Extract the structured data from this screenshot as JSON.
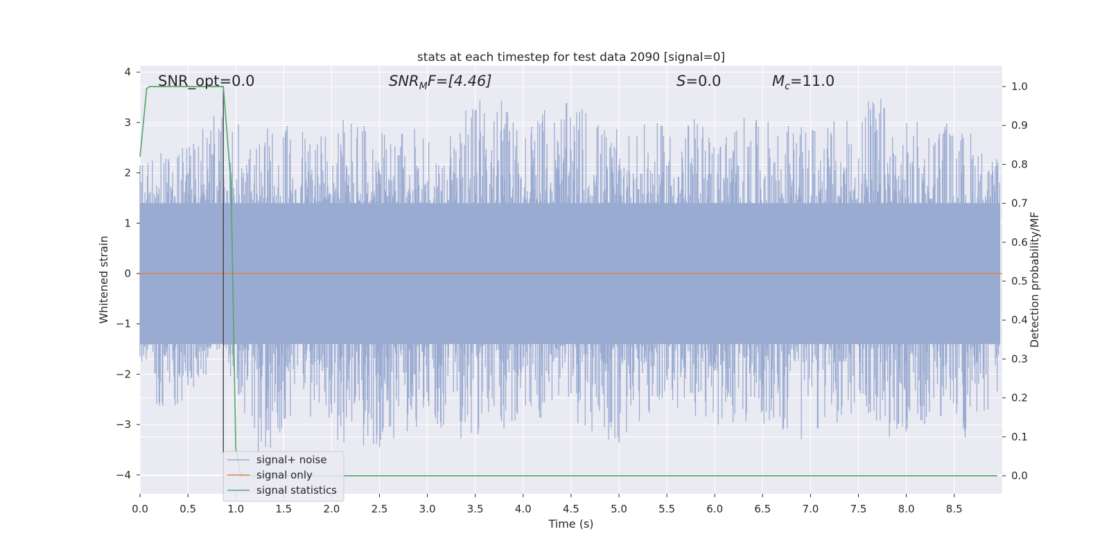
{
  "chart_data": {
    "type": "line",
    "title": "stats at each timestep for test data 2090 [signal=0]",
    "xlabel": "Time (s)",
    "ylabel": "Whitened strain",
    "y2label": "Detection probability/MF",
    "xlim": [
      0.0,
      9.0
    ],
    "ylim": [
      -4.38,
      4.1
    ],
    "y2lim": [
      -0.05,
      1.045
    ],
    "xticks": [
      "0.0",
      "0.5",
      "1.0",
      "1.5",
      "2.0",
      "2.5",
      "3.0",
      "3.5",
      "4.0",
      "4.5",
      "5.0",
      "5.5",
      "6.0",
      "6.5",
      "7.0",
      "7.5",
      "8.0",
      "8.5"
    ],
    "yticks": [
      "4",
      "3",
      "2",
      "1",
      "0",
      "−1",
      "−2",
      "−3",
      "−4"
    ],
    "y2ticks": [
      "1.0",
      "0.9",
      "0.8",
      "0.7",
      "0.6",
      "0.5",
      "0.4",
      "0.3",
      "0.2",
      "0.1",
      "0.0"
    ],
    "grid": true,
    "legend_position": "lower-left",
    "annotations": {
      "snr_opt": "SNR_opt=0.0",
      "snr_mf_main": "SNR",
      "snr_mf_sub": "M",
      "snr_mf_rest": "F=[4.46]",
      "s_main": "S",
      "s_rest": "=0.0",
      "mc_main": "M",
      "mc_sub": "c",
      "mc_rest": "=11.0"
    },
    "marker_line_x": 0.87,
    "series": [
      {
        "name": "signal+ noise",
        "color": "#9aabd1",
        "description": "whitened noise, envelope approx ±2 with peaks to about ±3.7",
        "envelope_peaks_x": [
          0.08,
          0.22,
          0.46,
          0.74,
          0.82,
          0.93,
          1.12,
          1.52,
          1.98,
          2.12,
          2.34,
          2.52,
          2.71,
          2.95,
          3.12,
          3.29,
          3.47,
          3.63,
          3.98,
          4.42,
          4.66,
          4.91,
          5.07,
          5.38,
          5.62,
          5.87,
          6.05,
          6.22,
          6.45,
          6.68,
          6.88,
          7.22,
          7.41,
          7.67,
          7.92,
          8.19,
          8.38,
          8.52,
          8.7,
          8.86
        ],
        "envelope_peaks_y": [
          2.2,
          2.45,
          2.55,
          3.15,
          3.3,
          2.95,
          3.0,
          2.95,
          3.0,
          3.25,
          3.1,
          2.8,
          2.8,
          3.1,
          2.5,
          2.9,
          3.45,
          3.65,
          3.2,
          3.4,
          3.4,
          2.85,
          2.9,
          3.0,
          3.0,
          3.15,
          2.75,
          3.2,
          3.05,
          3.15,
          2.9,
          3.1,
          3.05,
          3.7,
          3.05,
          3.05,
          3.2,
          2.85,
          2.95,
          2.3
        ],
        "envelope_troughs_x": [
          0.05,
          0.19,
          0.51,
          0.86,
          1.25,
          1.56,
          1.82,
          2.19,
          2.67,
          2.99,
          3.36,
          3.88,
          4.34,
          4.98,
          5.21,
          5.62,
          5.88,
          6.24,
          6.61,
          6.86,
          7.18,
          7.51,
          7.86,
          8.22,
          8.61,
          8.86
        ],
        "envelope_troughs_y": [
          -2.3,
          -2.9,
          -2.5,
          -1.6,
          -3.7,
          -3.1,
          -2.8,
          -3.6,
          -3.4,
          -2.9,
          -3.3,
          -3.2,
          -2.7,
          -3.6,
          -3.0,
          -2.7,
          -3.3,
          -3.0,
          -3.0,
          -3.45,
          -3.0,
          -3.0,
          -3.4,
          -3.0,
          -3.3,
          -2.9
        ]
      },
      {
        "name": "signal only",
        "color": "#dd8452",
        "x": [
          0.0,
          9.0
        ],
        "y": [
          0.0,
          0.0
        ]
      },
      {
        "name": "signal statistics",
        "color": "#55a868",
        "axis": "right",
        "x": [
          0.0,
          0.07,
          0.1,
          0.2,
          0.4,
          0.6,
          0.8,
          0.87,
          0.95,
          1.0,
          1.05,
          2.0,
          4.0,
          6.0,
          8.0,
          8.95
        ],
        "y": [
          0.82,
          0.995,
          1.0,
          1.0,
          1.0,
          1.0,
          1.0,
          1.0,
          0.75,
          0.07,
          0.0,
          0.0,
          0.0,
          0.0,
          0.0,
          0.0
        ]
      }
    ]
  }
}
